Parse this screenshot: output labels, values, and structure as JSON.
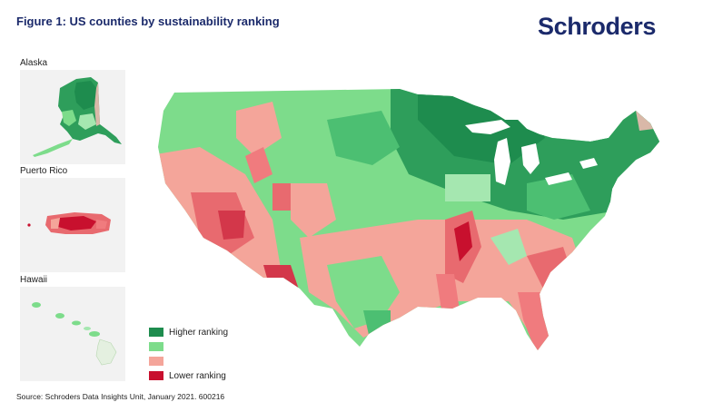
{
  "header": {
    "title": "Figure 1: US counties by sustainability ranking",
    "logo_text": "Schroders"
  },
  "insets": {
    "alaska": {
      "label": "Alaska"
    },
    "puerto_rico": {
      "label": "Puerto Rico"
    },
    "hawaii": {
      "label": "Hawaii"
    }
  },
  "legend": {
    "items": [
      {
        "label": "Higher ranking",
        "color": "#1e8c4e"
      },
      {
        "label": "",
        "color": "#7ddc8b"
      },
      {
        "label": "",
        "color": "#f4a59a"
      },
      {
        "label": "Lower ranking",
        "color": "#c8102e"
      }
    ]
  },
  "colors": {
    "high": "#1e8c4e",
    "mid_high": "#7ddc8b",
    "mid_low": "#f4a59a",
    "low": "#c8102e",
    "brand": "#1b2a6b"
  },
  "footer": {
    "source": "Source: Schroders Data Insights Unit, January 2021. 600216"
  }
}
